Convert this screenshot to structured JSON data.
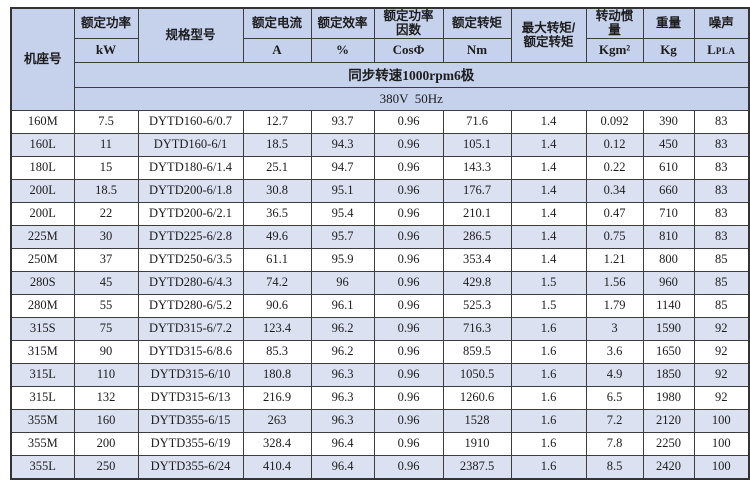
{
  "table": {
    "title_note": "",
    "columns": [
      {
        "name": "机座号",
        "unit": ""
      },
      {
        "name": "额定功率",
        "unit": "kW"
      },
      {
        "name": "规格型号",
        "unit": ""
      },
      {
        "name": "额定电流",
        "unit": "A"
      },
      {
        "name": "额定效率",
        "unit": "%"
      },
      {
        "name": "额定功率\n因数",
        "unit": "CosΦ"
      },
      {
        "name": "额定转矩",
        "unit": "Nm"
      },
      {
        "name": "最大转矩/\n额定转矩",
        "unit": ""
      },
      {
        "name": "转动惯\n量",
        "unit": "Kgm²"
      },
      {
        "name": "重量",
        "unit": "Kg"
      },
      {
        "name": "噪声",
        "unit_main": "L",
        "unit_sub": "PLA"
      }
    ],
    "banners": {
      "speed": "同步转速1000rpm6极",
      "voltage": "380V  50Hz"
    },
    "rows": [
      [
        "160M",
        "7.5",
        "DYTD160-6/0.7",
        "12.7",
        "93.7",
        "0.96",
        "71.6",
        "1.4",
        "0.092",
        "390",
        "83"
      ],
      [
        "160L",
        "11",
        "DYTD160-6/1",
        "18.5",
        "94.3",
        "0.96",
        "105.1",
        "1.4",
        "0.12",
        "450",
        "83"
      ],
      [
        "180L",
        "15",
        "DYTD180-6/1.4",
        "25.1",
        "94.7",
        "0.96",
        "143.3",
        "1.4",
        "0.22",
        "610",
        "83"
      ],
      [
        "200L",
        "18.5",
        "DYTD200-6/1.8",
        "30.8",
        "95.1",
        "0.96",
        "176.7",
        "1.4",
        "0.34",
        "660",
        "83"
      ],
      [
        "200L",
        "22",
        "DYTD200-6/2.1",
        "36.5",
        "95.4",
        "0.96",
        "210.1",
        "1.4",
        "0.47",
        "710",
        "83"
      ],
      [
        "225M",
        "30",
        "DYTD225-6/2.8",
        "49.6",
        "95.7",
        "0.96",
        "286.5",
        "1.4",
        "0.75",
        "810",
        "83"
      ],
      [
        "250M",
        "37",
        "DYTD250-6/3.5",
        "61.1",
        "95.9",
        "0.96",
        "353.4",
        "1.4",
        "1.21",
        "800",
        "85"
      ],
      [
        "280S",
        "45",
        "DYTD280-6/4.3",
        "74.2",
        "96",
        "0.96",
        "429.8",
        "1.5",
        "1.56",
        "960",
        "85"
      ],
      [
        "280M",
        "55",
        "DYTD280-6/5.2",
        "90.6",
        "96.1",
        "0.96",
        "525.3",
        "1.5",
        "1.79",
        "1140",
        "85"
      ],
      [
        "315S",
        "75",
        "DYTD315-6/7.2",
        "123.4",
        "96.2",
        "0.96",
        "716.3",
        "1.6",
        "3",
        "1590",
        "92"
      ],
      [
        "315M",
        "90",
        "DYTD315-6/8.6",
        "85.3",
        "96.2",
        "0.96",
        "859.5",
        "1.6",
        "3.6",
        "1650",
        "92"
      ],
      [
        "315L",
        "110",
        "DYTD315-6/10",
        "180.8",
        "96.3",
        "0.96",
        "1050.5",
        "1.6",
        "4.9",
        "1850",
        "92"
      ],
      [
        "315L",
        "132",
        "DYTD315-6/13",
        "216.9",
        "96.3",
        "0.96",
        "1260.6",
        "1.6",
        "6.5",
        "1980",
        "92"
      ],
      [
        "355M",
        "160",
        "DYTD355-6/15",
        "263",
        "96.3",
        "0.96",
        "1528",
        "1.6",
        "7.2",
        "2120",
        "100"
      ],
      [
        "355M",
        "200",
        "DYTD355-6/19",
        "328.4",
        "96.4",
        "0.96",
        "1910",
        "1.6",
        "7.8",
        "2250",
        "100"
      ],
      [
        "355L",
        "250",
        "DYTD355-6/24",
        "410.4",
        "96.4",
        "0.96",
        "2387.5",
        "1.6",
        "8.5",
        "2420",
        "100"
      ]
    ],
    "stripe_color": "#dbe1f0",
    "header_color": "#c6d2ec",
    "border_color": "#3d3d3d"
  }
}
